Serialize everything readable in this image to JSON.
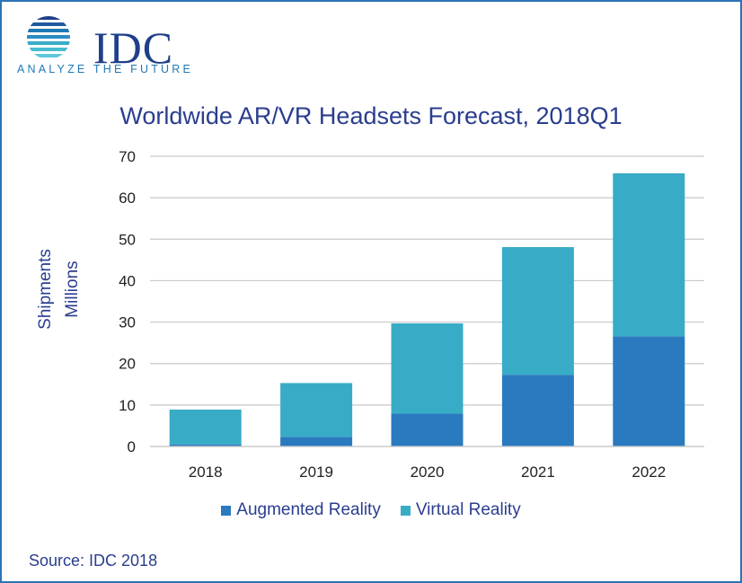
{
  "logo": {
    "text": "IDC",
    "tagline": "ANALYZE THE FUTURE"
  },
  "source": "Source: IDC 2018",
  "colors": {
    "ar": "#2a7abf",
    "vr": "#38acc7",
    "grid": "#c9c9c9",
    "frame": "#2b74b6",
    "text": "#2a3d8f"
  },
  "chart_data": {
    "type": "bar",
    "stacked": true,
    "title": "Worldwide AR/VR Headsets Forecast, 2018Q1",
    "ylabel": [
      "Shipments",
      "Millions"
    ],
    "xlabel": "",
    "categories": [
      "2018",
      "2019",
      "2020",
      "2021",
      "2022"
    ],
    "series": [
      {
        "name": "Augmented Reality",
        "values": [
          0.5,
          2.3,
          7.9,
          17.3,
          26.6
        ]
      },
      {
        "name": "Virtual Reality",
        "values": [
          8.4,
          13.0,
          21.8,
          30.8,
          39.3
        ]
      }
    ],
    "ylim": [
      0,
      70
    ],
    "yticks": [
      "0",
      "10",
      "20",
      "30",
      "40",
      "50",
      "60",
      "70"
    ],
    "grid": true,
    "legend": "bottom"
  }
}
